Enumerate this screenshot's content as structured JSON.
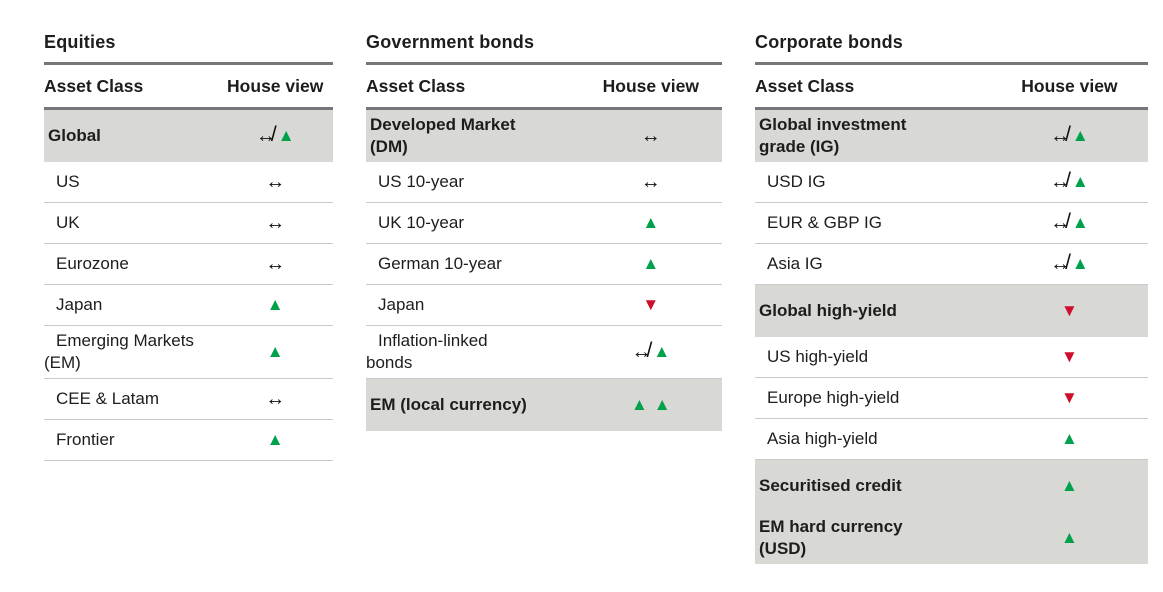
{
  "glyphs": {
    "up": "▲",
    "down": "▼",
    "neutral": "↔",
    "slash": "/"
  },
  "colors": {
    "positive": "#00A14B",
    "negative": "#CE0E2D",
    "highlight_bg": "#D8D8D5"
  },
  "tables": [
    {
      "title": "Equities",
      "columns": {
        "asset_class": "Asset Class",
        "house_view": "House view"
      },
      "rows": [
        {
          "label": "Global",
          "highlight": true,
          "view": "neutral-to-up"
        },
        {
          "label": "US",
          "highlight": false,
          "view": "neutral"
        },
        {
          "label": "UK",
          "highlight": false,
          "view": "neutral"
        },
        {
          "label": "Eurozone",
          "highlight": false,
          "view": "neutral"
        },
        {
          "label": "Japan",
          "highlight": false,
          "view": "up"
        },
        {
          "label": "Emerging Markets (EM)",
          "highlight": false,
          "view": "up"
        },
        {
          "label": "CEE & Latam",
          "highlight": false,
          "view": "neutral"
        },
        {
          "label": "Frontier",
          "highlight": false,
          "view": "up"
        }
      ]
    },
    {
      "title": "Government bonds",
      "columns": {
        "asset_class": "Asset Class",
        "house_view": "House view"
      },
      "rows": [
        {
          "label": "Developed Market (DM)",
          "highlight": true,
          "view": "neutral"
        },
        {
          "label": "US 10-year",
          "highlight": false,
          "view": "neutral"
        },
        {
          "label": "UK 10-year",
          "highlight": false,
          "view": "up"
        },
        {
          "label": "German 10-year",
          "highlight": false,
          "view": "up"
        },
        {
          "label": "Japan",
          "highlight": false,
          "view": "down"
        },
        {
          "label": "Inflation-linked bonds",
          "highlight": false,
          "view": "neutral-to-up"
        },
        {
          "label": "EM (local currency)",
          "highlight": true,
          "view": "double-up"
        }
      ]
    },
    {
      "title": "Corporate bonds",
      "columns": {
        "asset_class": "Asset Class",
        "house_view": "House view"
      },
      "rows": [
        {
          "label": "Global investment grade (IG)",
          "highlight": true,
          "view": "neutral-to-up"
        },
        {
          "label": "USD IG",
          "highlight": false,
          "view": "neutral-to-up"
        },
        {
          "label": "EUR & GBP IG",
          "highlight": false,
          "view": "neutral-to-up"
        },
        {
          "label": "Asia IG",
          "highlight": false,
          "view": "neutral-to-up"
        },
        {
          "label": "Global high-yield",
          "highlight": true,
          "view": "down"
        },
        {
          "label": "US high-yield",
          "highlight": false,
          "view": "down"
        },
        {
          "label": "Europe high-yield",
          "highlight": false,
          "view": "down"
        },
        {
          "label": "Asia high-yield",
          "highlight": false,
          "view": "up"
        },
        {
          "label": "Securitised credit",
          "highlight": true,
          "view": "up"
        },
        {
          "label": "EM hard currency (USD)",
          "highlight": true,
          "view": "up"
        }
      ]
    }
  ]
}
